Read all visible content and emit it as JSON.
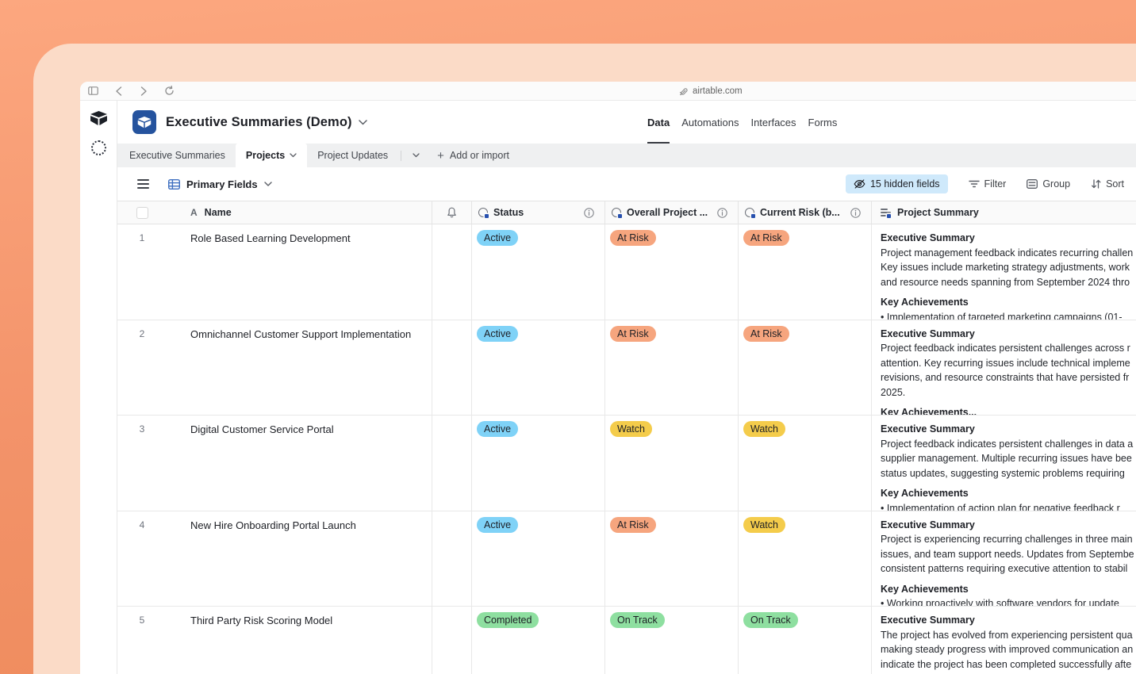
{
  "browser": {
    "url": "airtable.com"
  },
  "app": {
    "title": "Executive Summaries (Demo)",
    "nav": [
      "Data",
      "Automations",
      "Interfaces",
      "Forms"
    ],
    "active_nav": "Data",
    "tabs": [
      {
        "label": "Executive Summaries",
        "active": false
      },
      {
        "label": "Projects",
        "active": true
      },
      {
        "label": "Project Updates",
        "active": false
      }
    ],
    "add_tab_label": "Add or import",
    "view_bar": {
      "view_name": "Primary Fields",
      "hidden_fields": "15 hidden fields",
      "filter": "Filter",
      "group": "Group",
      "sort": "Sort"
    }
  },
  "colors": {
    "frame_orange_top": "#fca77f",
    "frame_orange_bottom": "#ee8b5c",
    "card_peach": "#fbdbc7",
    "logo_blue": "#25539e",
    "hidden_fields_bg": "#cfe9fb",
    "field_dot_blue": "#2750ae"
  },
  "icons": {
    "rail": [
      "airtable-logo-icon",
      "dotted-circle-icon"
    ],
    "browser": [
      "sidebar-toggle-icon",
      "back-arrow-icon",
      "forward-arrow-icon",
      "reload-icon",
      "link-icon"
    ],
    "toolbar": [
      "menu-icon",
      "grid-view-icon",
      "eye-slash-icon",
      "filter-icon",
      "group-icon",
      "sort-icon"
    ],
    "header": [
      "checkbox",
      "text-field-icon",
      "bell-icon",
      "single-select-ai-icon",
      "ai-long-text-icon",
      "info-icon"
    ]
  },
  "table": {
    "columns": {
      "name": "Name",
      "status": "Status",
      "overall": "Overall Project ...",
      "risk": "Current Risk (b...",
      "summary": "Project Summary"
    },
    "pill_colors": {
      "blue": "#7fd2f7",
      "orange": "#f6a57e",
      "yellow": "#f4cc4b",
      "green": "#8edfa0"
    },
    "rows": [
      {
        "num": "1",
        "name": "Role Based Learning Development",
        "status": {
          "label": "Active",
          "color": "blue"
        },
        "overall": {
          "label": "At Risk",
          "color": "orange"
        },
        "risk": {
          "label": "At Risk",
          "color": "orange"
        },
        "summary": [
          {
            "t": "Executive Summary",
            "b": true
          },
          {
            "t": "Project management feedback indicates recurring challen"
          },
          {
            "t": "Key issues include marketing strategy adjustments, work"
          },
          {
            "t": "and resource needs spanning from September 2024 thro"
          },
          {
            "t": "Key Achievements",
            "b": true,
            "gap": true
          },
          {
            "t": "•  Implementation of targeted marketing campaigns (01-"
          }
        ]
      },
      {
        "num": "2",
        "name": "Omnichannel Customer Support Implementation",
        "status": {
          "label": "Active",
          "color": "blue"
        },
        "overall": {
          "label": "At Risk",
          "color": "orange"
        },
        "risk": {
          "label": "At Risk",
          "color": "orange"
        },
        "summary": [
          {
            "t": "Executive Summary",
            "b": true
          },
          {
            "t": "Project feedback indicates persistent challenges across r"
          },
          {
            "t": "attention. Key recurring issues include technical impleme"
          },
          {
            "t": "revisions, and resource constraints that have persisted fr"
          },
          {
            "t": "2025."
          },
          {
            "t": "Key Achievements...",
            "b": true,
            "gap": true
          }
        ]
      },
      {
        "num": "3",
        "name": "Digital Customer Service Portal",
        "status": {
          "label": "Active",
          "color": "blue"
        },
        "overall": {
          "label": "Watch",
          "color": "yellow"
        },
        "risk": {
          "label": "Watch",
          "color": "yellow"
        },
        "summary": [
          {
            "t": "Executive Summary",
            "b": true
          },
          {
            "t": "Project feedback indicates persistent challenges in data a"
          },
          {
            "t": "supplier management. Multiple recurring issues have bee"
          },
          {
            "t": "status updates, suggesting systemic problems requiring"
          },
          {
            "t": "Key Achievements",
            "b": true,
            "gap": true
          },
          {
            "t": "•  Implementation of action plan for negative feedback r"
          }
        ]
      },
      {
        "num": "4",
        "name": "New Hire Onboarding Portal Launch",
        "status": {
          "label": "Active",
          "color": "blue"
        },
        "overall": {
          "label": "At Risk",
          "color": "orange"
        },
        "risk": {
          "label": "Watch",
          "color": "yellow"
        },
        "summary": [
          {
            "t": "Executive Summary",
            "b": true
          },
          {
            "t": "Project is experiencing recurring challenges in three main"
          },
          {
            "t": "issues, and team support needs. Updates from Septembe"
          },
          {
            "t": "consistent patterns requiring executive attention to stabil"
          },
          {
            "t": "Key Achievements",
            "b": true,
            "gap": true
          },
          {
            "t": "•  Working proactively with software vendors for update"
          }
        ]
      },
      {
        "num": "5",
        "name": "Third Party Risk Scoring Model",
        "status": {
          "label": "Completed",
          "color": "green"
        },
        "overall": {
          "label": "On Track",
          "color": "green"
        },
        "risk": {
          "label": "On Track",
          "color": "green"
        },
        "summary": [
          {
            "t": "Executive Summary",
            "b": true
          },
          {
            "t": "The project has evolved from experiencing persistent qua"
          },
          {
            "t": "making steady progress with improved communication an"
          },
          {
            "t": "indicate the project has been completed successfully afte"
          }
        ]
      }
    ]
  }
}
